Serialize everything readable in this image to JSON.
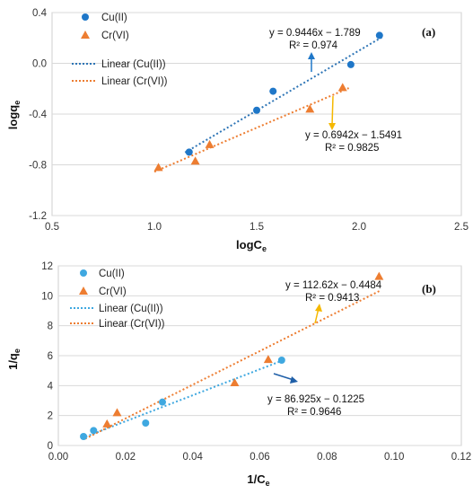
{
  "chart_data": [
    {
      "type": "scatter",
      "panel_label": "(a)",
      "xlabel": "logC",
      "xlabel_sub": "e",
      "ylabel": "logq",
      "ylabel_sub": "e",
      "xlim": [
        0.5,
        2.5
      ],
      "ylim": [
        -1.2,
        0.4
      ],
      "xticks": [
        0.5,
        1.0,
        1.5,
        2.0,
        2.5
      ],
      "xtick_labels": [
        "0.5",
        "1.0",
        "1.5",
        "2.0",
        "2.5"
      ],
      "yticks": [
        -1.2,
        -0.8,
        -0.4,
        0.0,
        0.4
      ],
      "ytick_labels": [
        "-1.2",
        "-0.8",
        "-0.4",
        "0.0",
        "0.4"
      ],
      "series": [
        {
          "name": "Cu(II)",
          "marker": "circle",
          "color": "#1f77c8",
          "x": [
            1.17,
            1.5,
            1.58,
            1.96,
            2.1
          ],
          "y": [
            -0.7,
            -0.37,
            -0.22,
            -0.01,
            0.22
          ]
        },
        {
          "name": "Cr(VI)",
          "marker": "triangle",
          "color": "#ed7d31",
          "x": [
            1.02,
            1.2,
            1.27,
            1.76,
            1.92
          ],
          "y": [
            -0.82,
            -0.77,
            -0.64,
            -0.36,
            -0.19
          ]
        }
      ],
      "fits": [
        {
          "name": "Linear (Cu(II))",
          "color": "#2e75b6",
          "slope": 0.9446,
          "intercept": -1.789,
          "x_range": [
            1.15,
            2.12
          ],
          "equation": "y = 0.9446x − 1.789",
          "r2": "R² = 0.974"
        },
        {
          "name": "Linear (Cr(VI))",
          "color": "#ed7d31",
          "slope": 0.6942,
          "intercept": -1.5491,
          "x_range": [
            1.0,
            1.95
          ],
          "equation": "y = 0.6942x − 1.5491",
          "r2": "R² = 0.9825"
        }
      ],
      "legend_position": "top-left"
    },
    {
      "type": "scatter",
      "panel_label": "(b)",
      "xlabel": "1/C",
      "xlabel_sub": "e",
      "ylabel": "1/q",
      "ylabel_sub": "e",
      "xlim": [
        0.0,
        0.12
      ],
      "ylim": [
        0,
        12
      ],
      "xticks": [
        0.0,
        0.02,
        0.04,
        0.06,
        0.08,
        0.1,
        0.12
      ],
      "xtick_labels": [
        "0.00",
        "0.02",
        "0.04",
        "0.06",
        "0.08",
        "0.10",
        "0.12"
      ],
      "yticks": [
        0,
        2,
        4,
        6,
        8,
        10,
        12
      ],
      "ytick_labels": [
        "0",
        "2",
        "4",
        "6",
        "8",
        "10",
        "12"
      ],
      "series": [
        {
          "name": "Cu(II)",
          "marker": "circle",
          "color": "#3fa8e0",
          "x": [
            0.0075,
            0.0105,
            0.026,
            0.031,
            0.0665
          ],
          "y": [
            0.6,
            1.0,
            1.5,
            2.9,
            5.7
          ]
        },
        {
          "name": "Cr(VI)",
          "marker": "triangle",
          "color": "#ed7d31",
          "x": [
            0.0145,
            0.0175,
            0.0525,
            0.0625,
            0.0955
          ],
          "y": [
            1.45,
            2.2,
            4.2,
            5.75,
            11.3
          ]
        }
      ],
      "fits": [
        {
          "name": "Linear (Cu(II))",
          "color": "#3fa8e0",
          "slope": 86.925,
          "intercept": -0.1225,
          "x_range": [
            0.007,
            0.067
          ],
          "equation": "y = 86.925x − 0.1225",
          "r2": "R² = 0.9646"
        },
        {
          "name": "Linear (Cr(VI))",
          "color": "#ed7d31",
          "slope": 112.62,
          "intercept": -0.4484,
          "x_range": [
            0.008,
            0.096
          ],
          "equation": "y = 112.62x − 0.4484",
          "r2": "R² = 0.9413"
        }
      ],
      "legend_position": "top-left"
    }
  ]
}
